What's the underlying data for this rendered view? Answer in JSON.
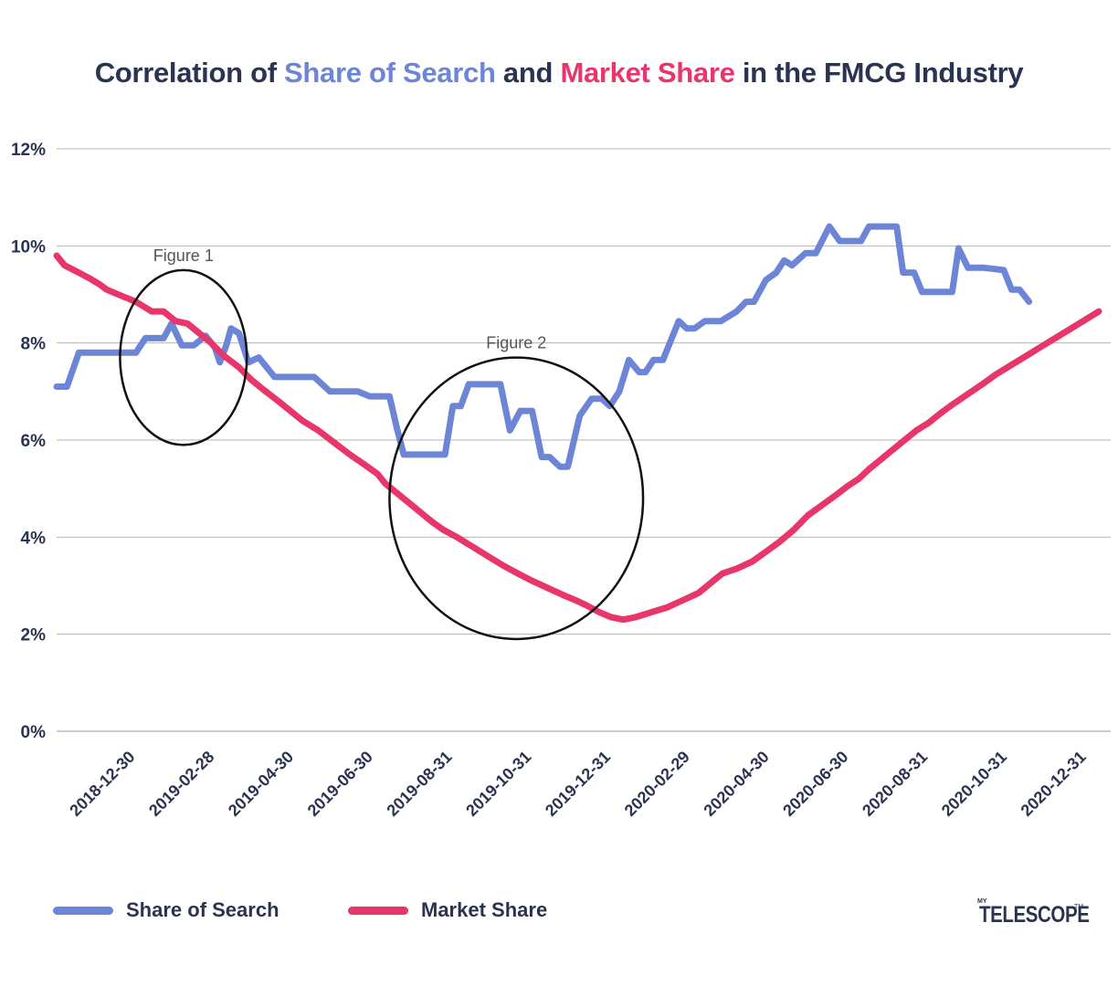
{
  "title": {
    "prefix": "Correlation of ",
    "sos": "Share of Search",
    "mid": " and ",
    "ms": "Market Share",
    "suffix": " in the FMCG Industry"
  },
  "colors": {
    "share_of_search": "#6d85d6",
    "market_share": "#e8356a",
    "text": "#2a3350",
    "grid": "#b5b5b5"
  },
  "legend": {
    "sos_label": "Share of Search",
    "ms_label": "Market Share"
  },
  "logo": {
    "my": "MY",
    "word": "TELESCOPE",
    "tm": "TM"
  },
  "chart_data": {
    "type": "line",
    "title": "Correlation of Share of Search and Market Share in the FMCG Industry",
    "xlabel": "",
    "ylabel": "",
    "ylim": [
      0,
      12
    ],
    "grid": true,
    "legend_position": "bottom",
    "y_ticks": [
      "0%",
      "2%",
      "4%",
      "6%",
      "8%",
      "10%",
      "12%"
    ],
    "x_ticks": [
      "2018-12-30",
      "2019-02-28",
      "2019-04-30",
      "2019-06-30",
      "2019-08-31",
      "2019-10-31",
      "2019-12-31",
      "2020-02-29",
      "2020-04-30",
      "2020-06-30",
      "2020-08-31",
      "2020-10-31",
      "2020-12-31"
    ],
    "x_range": [
      0,
      13.3
    ],
    "annotations": [
      {
        "text": "Figure 1",
        "center": [
          1.6,
          7.7
        ],
        "radius": [
          0.8,
          1.8
        ]
      },
      {
        "text": "Figure 2",
        "center": [
          5.8,
          4.8
        ],
        "radius": [
          1.6,
          2.9
        ]
      }
    ],
    "series": [
      {
        "name": "Share of Search",
        "points": [
          [
            0,
            7.1
          ],
          [
            0.13,
            7.1
          ],
          [
            0.28,
            7.8
          ],
          [
            0.55,
            7.8
          ],
          [
            0.85,
            7.8
          ],
          [
            1.0,
            7.8
          ],
          [
            1.12,
            8.1
          ],
          [
            1.35,
            8.1
          ],
          [
            1.45,
            8.4
          ],
          [
            1.58,
            7.95
          ],
          [
            1.73,
            7.95
          ],
          [
            1.88,
            8.15
          ],
          [
            2.0,
            7.9
          ],
          [
            2.06,
            7.6
          ],
          [
            2.14,
            7.95
          ],
          [
            2.2,
            8.3
          ],
          [
            2.3,
            8.2
          ],
          [
            2.42,
            7.6
          ],
          [
            2.55,
            7.7
          ],
          [
            2.75,
            7.3
          ],
          [
            2.95,
            7.3
          ],
          [
            3.25,
            7.3
          ],
          [
            3.45,
            7.0
          ],
          [
            3.8,
            7.0
          ],
          [
            3.95,
            6.9
          ],
          [
            4.2,
            6.9
          ],
          [
            4.3,
            6.2
          ],
          [
            4.38,
            5.7
          ],
          [
            4.65,
            5.7
          ],
          [
            4.9,
            5.7
          ],
          [
            5.0,
            6.7
          ],
          [
            5.1,
            6.7
          ],
          [
            5.2,
            7.15
          ],
          [
            5.42,
            7.15
          ],
          [
            5.6,
            7.15
          ],
          [
            5.72,
            6.2
          ],
          [
            5.85,
            6.6
          ],
          [
            6.0,
            6.6
          ],
          [
            6.12,
            5.65
          ],
          [
            6.22,
            5.65
          ],
          [
            6.35,
            5.45
          ],
          [
            6.45,
            5.45
          ],
          [
            6.6,
            6.5
          ],
          [
            6.75,
            6.85
          ],
          [
            6.88,
            6.85
          ],
          [
            6.98,
            6.7
          ],
          [
            7.1,
            7.0
          ],
          [
            7.22,
            7.65
          ],
          [
            7.35,
            7.4
          ],
          [
            7.43,
            7.4
          ],
          [
            7.53,
            7.65
          ],
          [
            7.65,
            7.65
          ],
          [
            7.85,
            8.45
          ],
          [
            7.95,
            8.3
          ],
          [
            8.05,
            8.3
          ],
          [
            8.18,
            8.45
          ],
          [
            8.38,
            8.45
          ],
          [
            8.58,
            8.65
          ],
          [
            8.7,
            8.85
          ],
          [
            8.8,
            8.85
          ],
          [
            8.95,
            9.3
          ],
          [
            9.08,
            9.45
          ],
          [
            9.18,
            9.7
          ],
          [
            9.28,
            9.6
          ],
          [
            9.45,
            9.85
          ],
          [
            9.58,
            9.85
          ],
          [
            9.75,
            10.4
          ],
          [
            9.88,
            10.1
          ],
          [
            10.05,
            10.1
          ],
          [
            10.15,
            10.1
          ],
          [
            10.25,
            10.4
          ],
          [
            10.6,
            10.4
          ],
          [
            10.68,
            9.45
          ],
          [
            10.82,
            9.45
          ],
          [
            10.92,
            9.05
          ],
          [
            11.15,
            9.05
          ],
          [
            11.3,
            9.05
          ],
          [
            11.38,
            9.95
          ],
          [
            11.5,
            9.55
          ],
          [
            11.7,
            9.55
          ],
          [
            11.95,
            9.5
          ],
          [
            12.05,
            9.1
          ],
          [
            12.15,
            9.1
          ],
          [
            12.27,
            8.85
          ]
        ]
      },
      {
        "name": "Market Share",
        "points": [
          [
            0,
            9.8
          ],
          [
            0.1,
            9.6
          ],
          [
            0.28,
            9.45
          ],
          [
            0.45,
            9.3
          ],
          [
            0.55,
            9.2
          ],
          [
            0.63,
            9.1
          ],
          [
            0.85,
            8.95
          ],
          [
            1.0,
            8.85
          ],
          [
            1.1,
            8.75
          ],
          [
            1.2,
            8.65
          ],
          [
            1.35,
            8.65
          ],
          [
            1.5,
            8.45
          ],
          [
            1.65,
            8.4
          ],
          [
            1.8,
            8.2
          ],
          [
            1.95,
            8.0
          ],
          [
            2.1,
            7.75
          ],
          [
            2.3,
            7.5
          ],
          [
            2.45,
            7.25
          ],
          [
            2.6,
            7.05
          ],
          [
            2.8,
            6.8
          ],
          [
            2.95,
            6.6
          ],
          [
            3.1,
            6.4
          ],
          [
            3.3,
            6.2
          ],
          [
            3.5,
            5.95
          ],
          [
            3.7,
            5.7
          ],
          [
            3.88,
            5.5
          ],
          [
            4.05,
            5.3
          ],
          [
            4.15,
            5.1
          ],
          [
            4.3,
            4.9
          ],
          [
            4.45,
            4.7
          ],
          [
            4.6,
            4.5
          ],
          [
            4.75,
            4.3
          ],
          [
            4.88,
            4.15
          ],
          [
            5.05,
            4.0
          ],
          [
            5.2,
            3.85
          ],
          [
            5.35,
            3.7
          ],
          [
            5.5,
            3.55
          ],
          [
            5.65,
            3.4
          ],
          [
            5.82,
            3.25
          ],
          [
            6.0,
            3.1
          ],
          [
            6.2,
            2.95
          ],
          [
            6.4,
            2.8
          ],
          [
            6.55,
            2.7
          ],
          [
            6.68,
            2.6
          ],
          [
            6.85,
            2.45
          ],
          [
            7.0,
            2.35
          ],
          [
            7.15,
            2.3
          ],
          [
            7.3,
            2.35
          ],
          [
            7.5,
            2.45
          ],
          [
            7.7,
            2.55
          ],
          [
            7.9,
            2.7
          ],
          [
            8.1,
            2.85
          ],
          [
            8.25,
            3.05
          ],
          [
            8.4,
            3.25
          ],
          [
            8.58,
            3.35
          ],
          [
            8.78,
            3.5
          ],
          [
            8.95,
            3.7
          ],
          [
            9.12,
            3.9
          ],
          [
            9.3,
            4.15
          ],
          [
            9.48,
            4.45
          ],
          [
            9.65,
            4.65
          ],
          [
            9.82,
            4.85
          ],
          [
            9.98,
            5.05
          ],
          [
            10.12,
            5.2
          ],
          [
            10.25,
            5.4
          ],
          [
            10.4,
            5.6
          ],
          [
            10.55,
            5.8
          ],
          [
            10.7,
            6.0
          ],
          [
            10.85,
            6.2
          ],
          [
            11.0,
            6.35
          ],
          [
            11.15,
            6.55
          ],
          [
            11.32,
            6.75
          ],
          [
            11.5,
            6.95
          ],
          [
            11.68,
            7.15
          ],
          [
            11.85,
            7.35
          ],
          [
            12.05,
            7.55
          ],
          [
            12.25,
            7.75
          ],
          [
            12.45,
            7.95
          ],
          [
            12.65,
            8.15
          ],
          [
            12.85,
            8.35
          ],
          [
            13.0,
            8.5
          ],
          [
            13.15,
            8.65
          ]
        ]
      }
    ]
  }
}
